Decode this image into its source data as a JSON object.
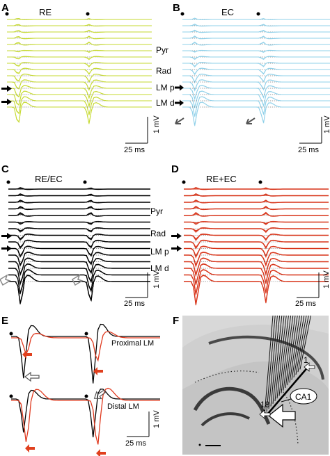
{
  "colors": {
    "re": "#c6d930",
    "ec": "#8fd0e8",
    "re_ec": "#000000",
    "re_plus_ec": "#d8361b",
    "legend_red": "#e03a1f",
    "arrow_red": "#e0401e"
  },
  "panels": {
    "A": {
      "label": "A",
      "title": "RE"
    },
    "B": {
      "label": "B",
      "title": "EC"
    },
    "C": {
      "label": "C",
      "title": "RE/EC"
    },
    "D": {
      "label": "D",
      "title": "RE+EC"
    },
    "E": {
      "label": "E",
      "proximal_label": "Proximal LM",
      "distal_label": "Distal LM"
    },
    "F": {
      "label": "F",
      "region": "CA1",
      "electrode_top": "1",
      "electrode_bottom": "18"
    }
  },
  "layers": {
    "pyr": "Pyr",
    "rad": "Rad",
    "lmp": "LM p",
    "lmd": "LM d"
  },
  "scalebars": {
    "time": "25 ms",
    "voltage": "1 mV"
  },
  "icons": [
    "stimulus-dot-icon",
    "layer-arrow-icon",
    "open-arrow-icon",
    "red-arrow-icon"
  ]
}
